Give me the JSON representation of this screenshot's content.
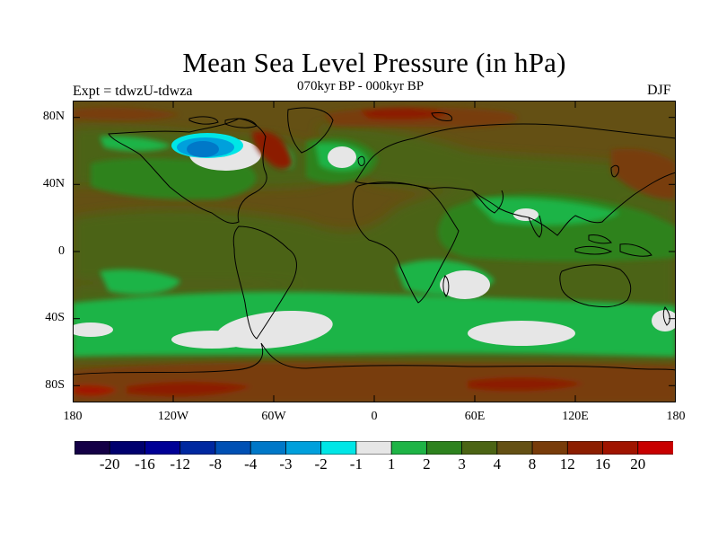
{
  "title": "Mean Sea Level Pressure (in hPa)",
  "experiment_label": "Expt = tdwzU-tdwza",
  "period_label": "070kyr BP - 000kyr BP",
  "season_label": "DJF",
  "map": {
    "projection": "cylindrical equidistant",
    "lon_range": [
      -180,
      180
    ],
    "lat_range": [
      -90,
      90
    ],
    "lat_ticks": [
      {
        "value": 80,
        "label": "80N"
      },
      {
        "value": 40,
        "label": "40N"
      },
      {
        "value": 0,
        "label": "0"
      },
      {
        "value": -40,
        "label": "40S"
      },
      {
        "value": -80,
        "label": "80S"
      }
    ],
    "lon_ticks": [
      {
        "value": -180,
        "label": "180"
      },
      {
        "value": -120,
        "label": "120W"
      },
      {
        "value": -60,
        "label": "60W"
      },
      {
        "value": 0,
        "label": "0"
      },
      {
        "value": 60,
        "label": "60E"
      },
      {
        "value": 120,
        "label": "120E"
      },
      {
        "value": 180,
        "label": "180"
      }
    ]
  },
  "colorbar": {
    "colors": [
      "#140046",
      "#00006e",
      "#000096",
      "#0028a0",
      "#0050b4",
      "#0078c8",
      "#00a0dc",
      "#00e6e6",
      "#e6e6e6",
      "#1eb446",
      "#2d821e",
      "#4b6414",
      "#645014",
      "#783c0a",
      "#8c1e00",
      "#a01400",
      "#c80000"
    ],
    "labels": [
      "-20",
      "-16",
      "-12",
      "-8",
      "-4",
      "-3",
      "-2",
      "-1",
      "1",
      "2",
      "3",
      "4",
      "8",
      "12",
      "16",
      "20"
    ]
  }
}
